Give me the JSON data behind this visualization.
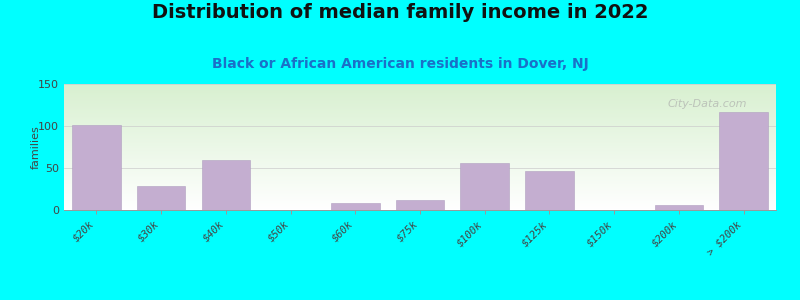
{
  "title": "Distribution of median family income in 2022",
  "subtitle": "Black or African American residents in Dover, NJ",
  "ylabel": "families",
  "background_color": "#00FFFF",
  "bar_color": "#c4aed0",
  "bar_edge_color": "#b09fc0",
  "categories": [
    "$20k",
    "$30k",
    "$40k",
    "$50k",
    "$60k",
    "$75k",
    "$100k",
    "$125k",
    "$150k",
    "$200k",
    "> $200k"
  ],
  "values": [
    101,
    29,
    59,
    0,
    8,
    12,
    56,
    47,
    0,
    6,
    117
  ],
  "ylim": [
    0,
    150
  ],
  "yticks": [
    0,
    50,
    100,
    150
  ],
  "title_fontsize": 14,
  "subtitle_fontsize": 10,
  "watermark": "City-Data.com"
}
